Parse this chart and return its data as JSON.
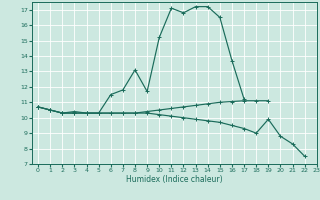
{
  "xlabel": "Humidex (Indice chaleur)",
  "ylabel": "",
  "xlim": [
    -0.5,
    23
  ],
  "ylim": [
    7,
    17.5
  ],
  "yticks": [
    7,
    8,
    9,
    10,
    11,
    12,
    13,
    14,
    15,
    16,
    17
  ],
  "xticks": [
    0,
    1,
    2,
    3,
    4,
    5,
    6,
    7,
    8,
    9,
    10,
    11,
    12,
    13,
    14,
    15,
    16,
    17,
    18,
    19,
    20,
    21,
    22,
    23
  ],
  "bg_color": "#cce8e0",
  "grid_color": "#ffffff",
  "line_color": "#1a6b5a",
  "lines": [
    {
      "x": [
        0,
        1,
        2,
        3,
        4,
        5,
        6,
        7,
        8,
        9,
        10,
        11,
        12,
        13,
        14,
        15,
        16,
        17
      ],
      "y": [
        10.7,
        10.5,
        10.3,
        10.4,
        10.3,
        10.3,
        11.5,
        11.8,
        13.1,
        11.7,
        15.2,
        17.1,
        16.8,
        17.2,
        17.2,
        16.5,
        13.7,
        11.2
      ]
    },
    {
      "x": [
        0,
        1,
        2,
        3,
        4,
        5,
        6,
        7,
        8,
        9,
        10,
        11,
        12,
        13,
        14,
        15,
        16,
        17,
        18,
        19
      ],
      "y": [
        10.7,
        10.5,
        10.3,
        10.3,
        10.3,
        10.3,
        10.3,
        10.3,
        10.3,
        10.4,
        10.5,
        10.6,
        10.7,
        10.8,
        10.9,
        11.0,
        11.05,
        11.1,
        11.1,
        11.1
      ]
    },
    {
      "x": [
        0,
        1,
        2,
        3,
        4,
        5,
        6,
        7,
        8,
        9,
        10,
        11,
        12,
        13,
        14,
        15,
        16,
        17,
        18,
        19,
        20,
        21,
        22
      ],
      "y": [
        10.7,
        10.5,
        10.3,
        10.3,
        10.3,
        10.3,
        10.3,
        10.3,
        10.3,
        10.3,
        10.2,
        10.1,
        10.0,
        9.9,
        9.8,
        9.7,
        9.5,
        9.3,
        9.0,
        9.9,
        8.8,
        8.3,
        7.5
      ]
    }
  ]
}
